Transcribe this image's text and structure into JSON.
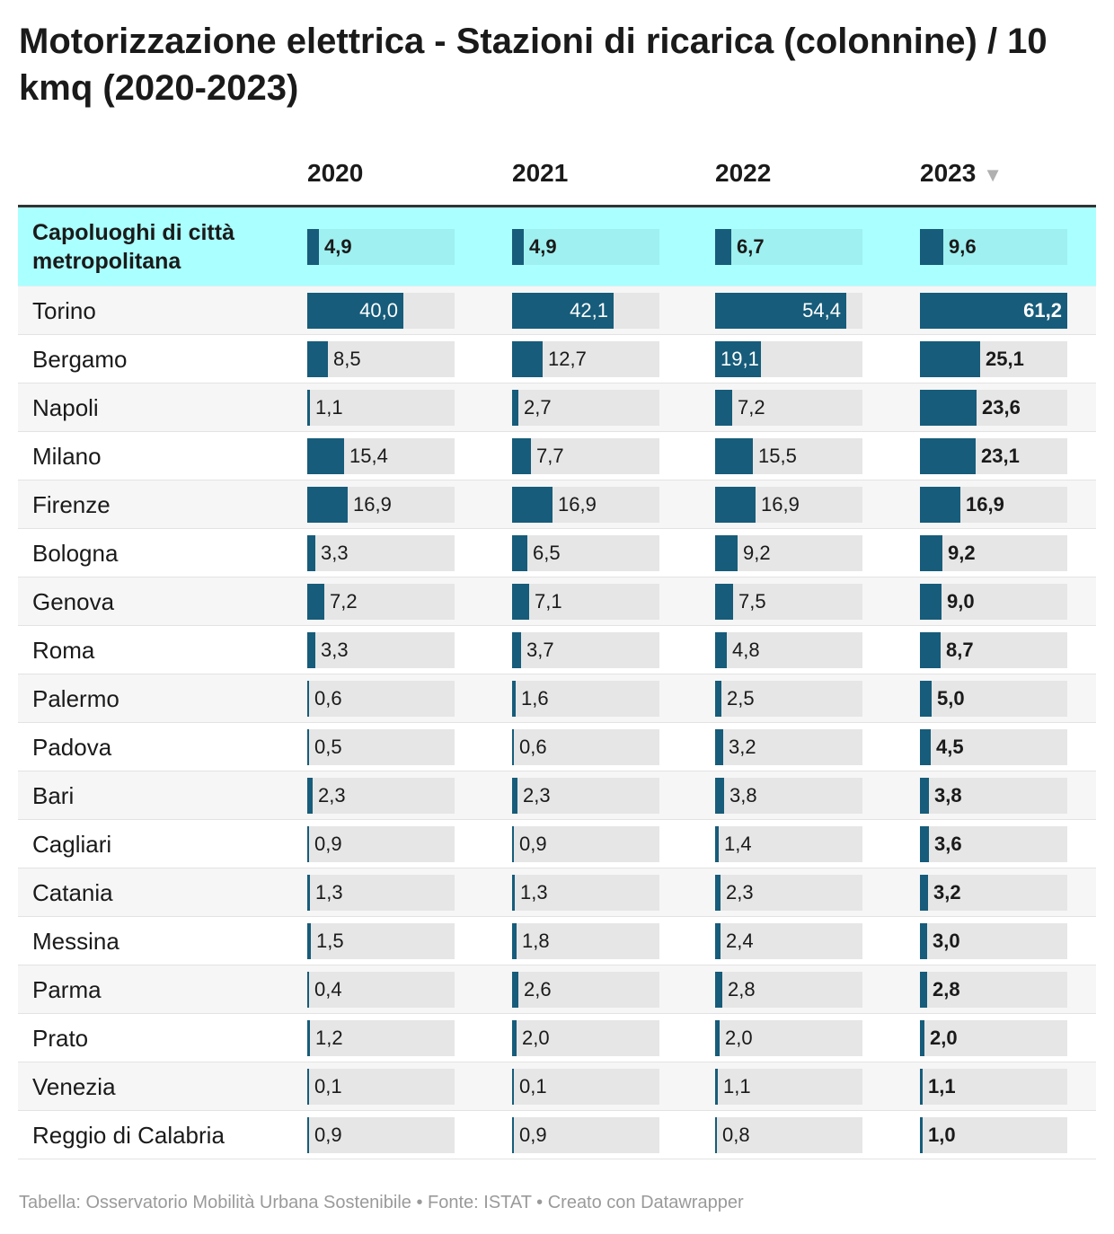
{
  "title": "Motorizzazione elettrica - Stazioni di ricarica (colonnine) / 10 kmq (2020-2023)",
  "footer": "Tabella: Osservatorio Mobilità Urbana Sostenibile • Fonte: ISTAT • Creato con Datawrapper",
  "colors": {
    "bar": "#175c7a",
    "highlight_row": "#aaffff",
    "bar_background": "#e6e6e6",
    "highlight_bar_background": "#9ff0f0"
  },
  "chart_data": {
    "type": "table",
    "columns": [
      "2020",
      "2021",
      "2022",
      "2023"
    ],
    "sort_column": "2023",
    "sort_icon": "sort-descending-icon",
    "scale_max": 61.2,
    "summary_row": {
      "label": "Capoluoghi di città metropolitana",
      "values": [
        "4,9",
        "4,9",
        "6,7",
        "9,6"
      ]
    },
    "rows": [
      {
        "label": "Torino",
        "values": [
          "40,0",
          "42,1",
          "54,4",
          "61,2"
        ]
      },
      {
        "label": "Bergamo",
        "values": [
          "8,5",
          "12,7",
          "19,1",
          "25,1"
        ]
      },
      {
        "label": "Napoli",
        "values": [
          "1,1",
          "2,7",
          "7,2",
          "23,6"
        ]
      },
      {
        "label": "Milano",
        "values": [
          "15,4",
          "7,7",
          "15,5",
          "23,1"
        ]
      },
      {
        "label": "Firenze",
        "values": [
          "16,9",
          "16,9",
          "16,9",
          "16,9"
        ]
      },
      {
        "label": "Bologna",
        "values": [
          "3,3",
          "6,5",
          "9,2",
          "9,2"
        ]
      },
      {
        "label": "Genova",
        "values": [
          "7,2",
          "7,1",
          "7,5",
          "9,0"
        ]
      },
      {
        "label": "Roma",
        "values": [
          "3,3",
          "3,7",
          "4,8",
          "8,7"
        ]
      },
      {
        "label": "Palermo",
        "values": [
          "0,6",
          "1,6",
          "2,5",
          "5,0"
        ]
      },
      {
        "label": "Padova",
        "values": [
          "0,5",
          "0,6",
          "3,2",
          "4,5"
        ]
      },
      {
        "label": "Bari",
        "values": [
          "2,3",
          "2,3",
          "3,8",
          "3,8"
        ]
      },
      {
        "label": "Cagliari",
        "values": [
          "0,9",
          "0,9",
          "1,4",
          "3,6"
        ]
      },
      {
        "label": "Catania",
        "values": [
          "1,3",
          "1,3",
          "2,3",
          "3,2"
        ]
      },
      {
        "label": "Messina",
        "values": [
          "1,5",
          "1,8",
          "2,4",
          "3,0"
        ]
      },
      {
        "label": "Parma",
        "values": [
          "0,4",
          "2,6",
          "2,8",
          "2,8"
        ]
      },
      {
        "label": "Prato",
        "values": [
          "1,2",
          "2,0",
          "2,0",
          "2,0"
        ]
      },
      {
        "label": "Venezia",
        "values": [
          "0,1",
          "0,1",
          "1,1",
          "1,1"
        ]
      },
      {
        "label": "Reggio di Calabria",
        "values": [
          "0,9",
          "0,9",
          "0,8",
          "1,0"
        ]
      }
    ]
  }
}
